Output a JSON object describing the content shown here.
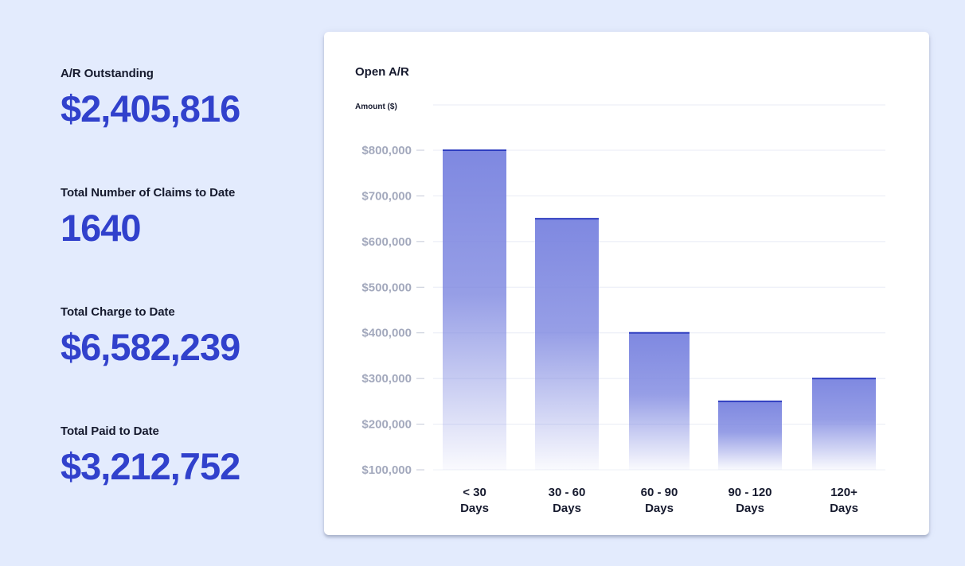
{
  "stats": [
    {
      "label": "A/R Outstanding",
      "value": "$2,405,816"
    },
    {
      "label": "Total Number of Claims to Date",
      "value": "1640"
    },
    {
      "label": "Total Charge to Date",
      "value": "$6,582,239"
    },
    {
      "label": "Total Paid to Date",
      "value": "$3,212,752"
    }
  ],
  "colors": {
    "background": "#e3ebfd",
    "accent": "#3141cc",
    "bar_fill": "#7c86e0",
    "bar_top": "#2e3dc0",
    "tick_label": "#a3a9bd",
    "grid": "#e8ebf5"
  },
  "chart_data": {
    "type": "bar",
    "title": "Open A/R",
    "ylabel": "Amount ($)",
    "xlabel": "",
    "categories": [
      [
        "< 30",
        "Days"
      ],
      [
        "30 - 60",
        "Days"
      ],
      [
        "60 - 90",
        "Days"
      ],
      [
        "90 - 120",
        "Days"
      ],
      [
        "120+",
        "Days"
      ]
    ],
    "values": [
      800000,
      650000,
      400000,
      250000,
      300000
    ],
    "ylim": [
      100000,
      900000
    ],
    "yticks": [
      100000,
      200000,
      300000,
      400000,
      500000,
      600000,
      700000,
      800000
    ],
    "ytick_labels": [
      "$100,000",
      "$200,000",
      "$300,000",
      "$400,000",
      "$500,000",
      "$600,000",
      "$700,000",
      "$800,000"
    ],
    "grid": true,
    "legend": "none"
  }
}
